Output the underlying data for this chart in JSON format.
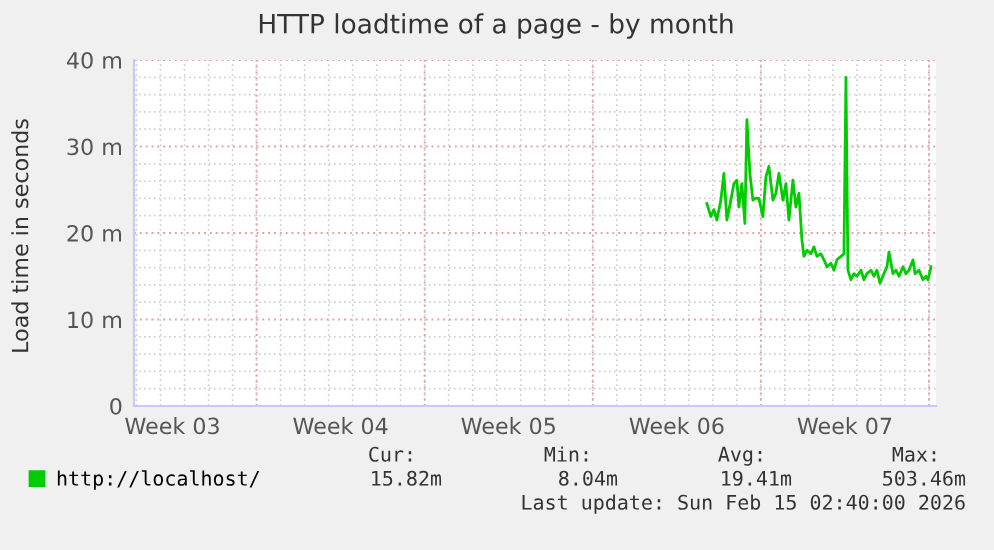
{
  "chart_data": {
    "type": "line",
    "title": "HTTP loadtime of a page - by month",
    "ylabel": "Load time in seconds",
    "xlim": [
      "2026-01-12T21:30",
      "2026-02-15T07:00"
    ],
    "ylim": [
      0,
      40
    ],
    "xticks": [
      {
        "value": "2026-01-14T12:00",
        "label": "Week 03"
      },
      {
        "value": "2026-01-21T12:00",
        "label": "Week 04"
      },
      {
        "value": "2026-01-28T12:00",
        "label": "Week 05"
      },
      {
        "value": "2026-02-04T12:00",
        "label": "Week 06"
      },
      {
        "value": "2026-02-11T12:00",
        "label": "Week 07"
      }
    ],
    "yticks": [
      {
        "value": 0,
        "label": "0"
      },
      {
        "value": 10,
        "label": "10 m"
      },
      {
        "value": 20,
        "label": "20 m"
      },
      {
        "value": 30,
        "label": "30 m"
      },
      {
        "value": 40,
        "label": "40 m"
      }
    ],
    "grid": true,
    "legend": "bottom",
    "line_style": "solid",
    "marker": "none",
    "ref_lines": [
      {
        "axis": "x",
        "value": "2026-01-18",
        "color": "#e8a0a0"
      },
      {
        "axis": "x",
        "value": "2026-01-25",
        "color": "#e8a0a0"
      },
      {
        "axis": "x",
        "value": "2026-02-01",
        "color": "#e8a0a0"
      },
      {
        "axis": "x",
        "value": "2026-02-08",
        "color": "#e8a0a0"
      },
      {
        "axis": "x",
        "value": "2026-02-15",
        "color": "#e8a0a0"
      }
    ],
    "x": [
      "2026-02-05T18:00",
      "2026-02-05T22:00",
      "2026-02-06T01:00",
      "2026-02-06T04:00",
      "2026-02-06T08:00",
      "2026-02-06T11:00",
      "2026-02-06T14:00",
      "2026-02-06T18:00",
      "2026-02-06T21:00",
      "2026-02-07T00:00",
      "2026-02-07T02:00",
      "2026-02-07T05:00",
      "2026-02-07T08:00",
      "2026-02-07T10:00",
      "2026-02-07T13:00",
      "2026-02-07T16:00",
      "2026-02-07T18:00",
      "2026-02-07T22:00",
      "2026-02-08T02:00",
      "2026-02-08T05:00",
      "2026-02-08T08:00",
      "2026-02-08T12:00",
      "2026-02-08T15:00",
      "2026-02-08T18:00",
      "2026-02-08T22:00",
      "2026-02-09T01:00",
      "2026-02-09T04:00",
      "2026-02-09T08:00",
      "2026-02-09T11:00",
      "2026-02-09T14:00",
      "2026-02-09T17:00",
      "2026-02-09T19:00",
      "2026-02-09T22:00",
      "2026-02-10T02:00",
      "2026-02-10T05:00",
      "2026-02-10T08:00",
      "2026-02-10T12:00",
      "2026-02-10T15:00",
      "2026-02-10T18:00",
      "2026-02-10T22:00",
      "2026-02-11T01:00",
      "2026-02-11T04:00",
      "2026-02-11T08:00",
      "2026-02-11T11:00",
      "2026-02-11T13:00",
      "2026-02-11T15:00",
      "2026-02-11T18:00",
      "2026-02-11T21:00",
      "2026-02-12T00:00",
      "2026-02-12T04:00",
      "2026-02-12T07:00",
      "2026-02-12T10:00",
      "2026-02-12T14:00",
      "2026-02-12T17:00",
      "2026-02-12T20:00",
      "2026-02-12T23:00",
      "2026-02-13T03:00",
      "2026-02-13T06:00",
      "2026-02-13T08:00",
      "2026-02-13T12:00",
      "2026-02-13T15:00",
      "2026-02-13T18:00",
      "2026-02-13T22:00",
      "2026-02-14T01:00",
      "2026-02-14T04:00",
      "2026-02-14T08:00",
      "2026-02-14T10:00",
      "2026-02-14T14:00",
      "2026-02-14T18:00",
      "2026-02-14T21:00",
      "2026-02-14T23:00",
      "2026-02-15T02:00"
    ],
    "series": [
      {
        "name": "http://localhost/",
        "color": "#00cc00",
        "values": [
          23.4,
          21.9,
          22.7,
          21.5,
          23.8,
          26.9,
          21.5,
          23.8,
          25.7,
          26.1,
          23.0,
          25.7,
          21.1,
          33.1,
          26.9,
          23.8,
          24.0,
          24.0,
          21.9,
          26.5,
          27.7,
          23.8,
          24.6,
          26.9,
          23.8,
          25.7,
          21.5,
          26.1,
          23.0,
          24.6,
          19.2,
          17.3,
          18.0,
          17.6,
          18.4,
          17.3,
          17.6,
          16.9,
          16.1,
          16.5,
          15.7,
          16.9,
          17.3,
          17.6,
          38.0,
          15.7,
          14.6,
          15.3,
          15.0,
          15.7,
          14.6,
          15.3,
          15.7,
          15.0,
          15.7,
          14.2,
          15.3,
          16.1,
          17.8,
          15.3,
          15.7,
          15.0,
          16.1,
          15.3,
          15.7,
          16.9,
          15.3,
          15.7,
          14.6,
          15.0,
          14.6,
          16.1
        ]
      }
    ],
    "annotations": [
      "Cur:",
      "Min:",
      "Avg:",
      "Max:",
      "15.82m",
      "8.04m",
      "19.41m",
      "503.46m",
      "Last update: Sun Feb 15 02:40:00 2026"
    ]
  }
}
